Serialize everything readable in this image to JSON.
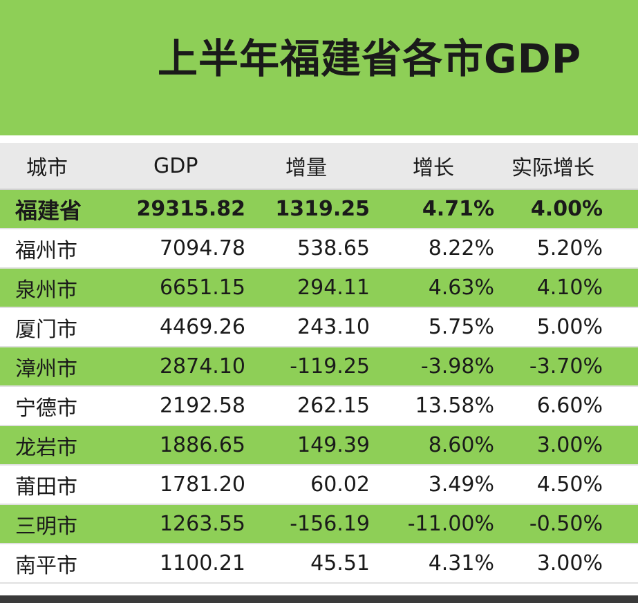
{
  "title": "上半年福建省各市GDP",
  "table": {
    "headers": [
      "城市",
      "GDP",
      "增量",
      "增长",
      "实际增长"
    ],
    "rows": [
      [
        "福建省",
        "29315.82",
        "1319.25",
        "4.71%",
        "4.00%"
      ],
      [
        "福州市",
        "7094.78",
        "538.65",
        "8.22%",
        "5.20%"
      ],
      [
        "泉州市",
        "6651.15",
        "294.11",
        "4.63%",
        "4.10%"
      ],
      [
        "厦门市",
        "4469.26",
        "243.10",
        "5.75%",
        "5.00%"
      ],
      [
        "漳州市",
        "2874.10",
        "-119.25",
        "-3.98%",
        "-3.70%"
      ],
      [
        "宁德市",
        "2192.58",
        "262.15",
        "13.58%",
        "6.60%"
      ],
      [
        "龙岩市",
        "1886.65",
        "149.39",
        "8.60%",
        "3.00%"
      ],
      [
        "莆田市",
        "1781.20",
        "60.02",
        "3.49%",
        "4.50%"
      ],
      [
        "三明市",
        "1263.55",
        "-156.19",
        "-11.00%",
        "-0.50%"
      ],
      [
        "南平市",
        "1100.21",
        "45.51",
        "4.31%",
        "3.00%"
      ]
    ]
  },
  "colors": {
    "accent_green": "#8ecf57",
    "header_gray": "#e9e9e9"
  }
}
